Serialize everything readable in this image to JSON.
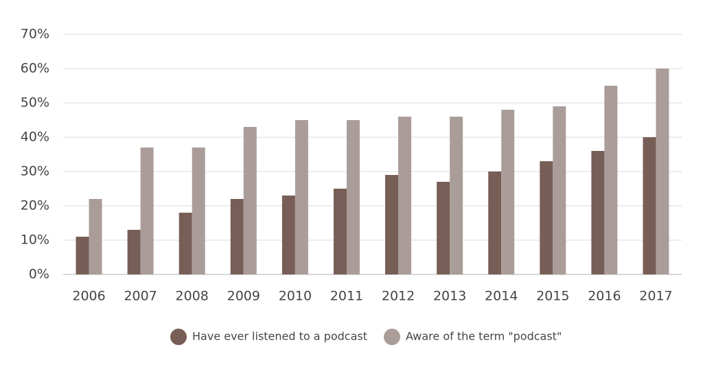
{
  "chart_data": {
    "type": "bar",
    "categories": [
      "2006",
      "2007",
      "2008",
      "2009",
      "2010",
      "2011",
      "2012",
      "2013",
      "2014",
      "2015",
      "2016",
      "2017"
    ],
    "series": [
      {
        "name": "Have ever listened to a podcast",
        "color": "#775e56",
        "values": [
          11,
          13,
          18,
          22,
          23,
          25,
          29,
          27,
          30,
          33,
          36,
          40
        ]
      },
      {
        "name": "Aware of the term \"podcast\"",
        "color": "#aa9d99",
        "values": [
          22,
          37,
          37,
          43,
          45,
          45,
          46,
          46,
          48,
          49,
          55,
          60
        ]
      }
    ],
    "ylim": [
      0,
      70
    ],
    "yticks": [
      {
        "value": 0,
        "label": "0%"
      },
      {
        "value": 10,
        "label": "10%"
      },
      {
        "value": 20,
        "label": "20%"
      },
      {
        "value": 30,
        "label": "30%"
      },
      {
        "value": 40,
        "label": "40%"
      },
      {
        "value": 50,
        "label": "50%"
      },
      {
        "value": 60,
        "label": "60%"
      },
      {
        "value": 70,
        "label": "70%"
      }
    ],
    "grid": true,
    "legend": "bottom"
  }
}
